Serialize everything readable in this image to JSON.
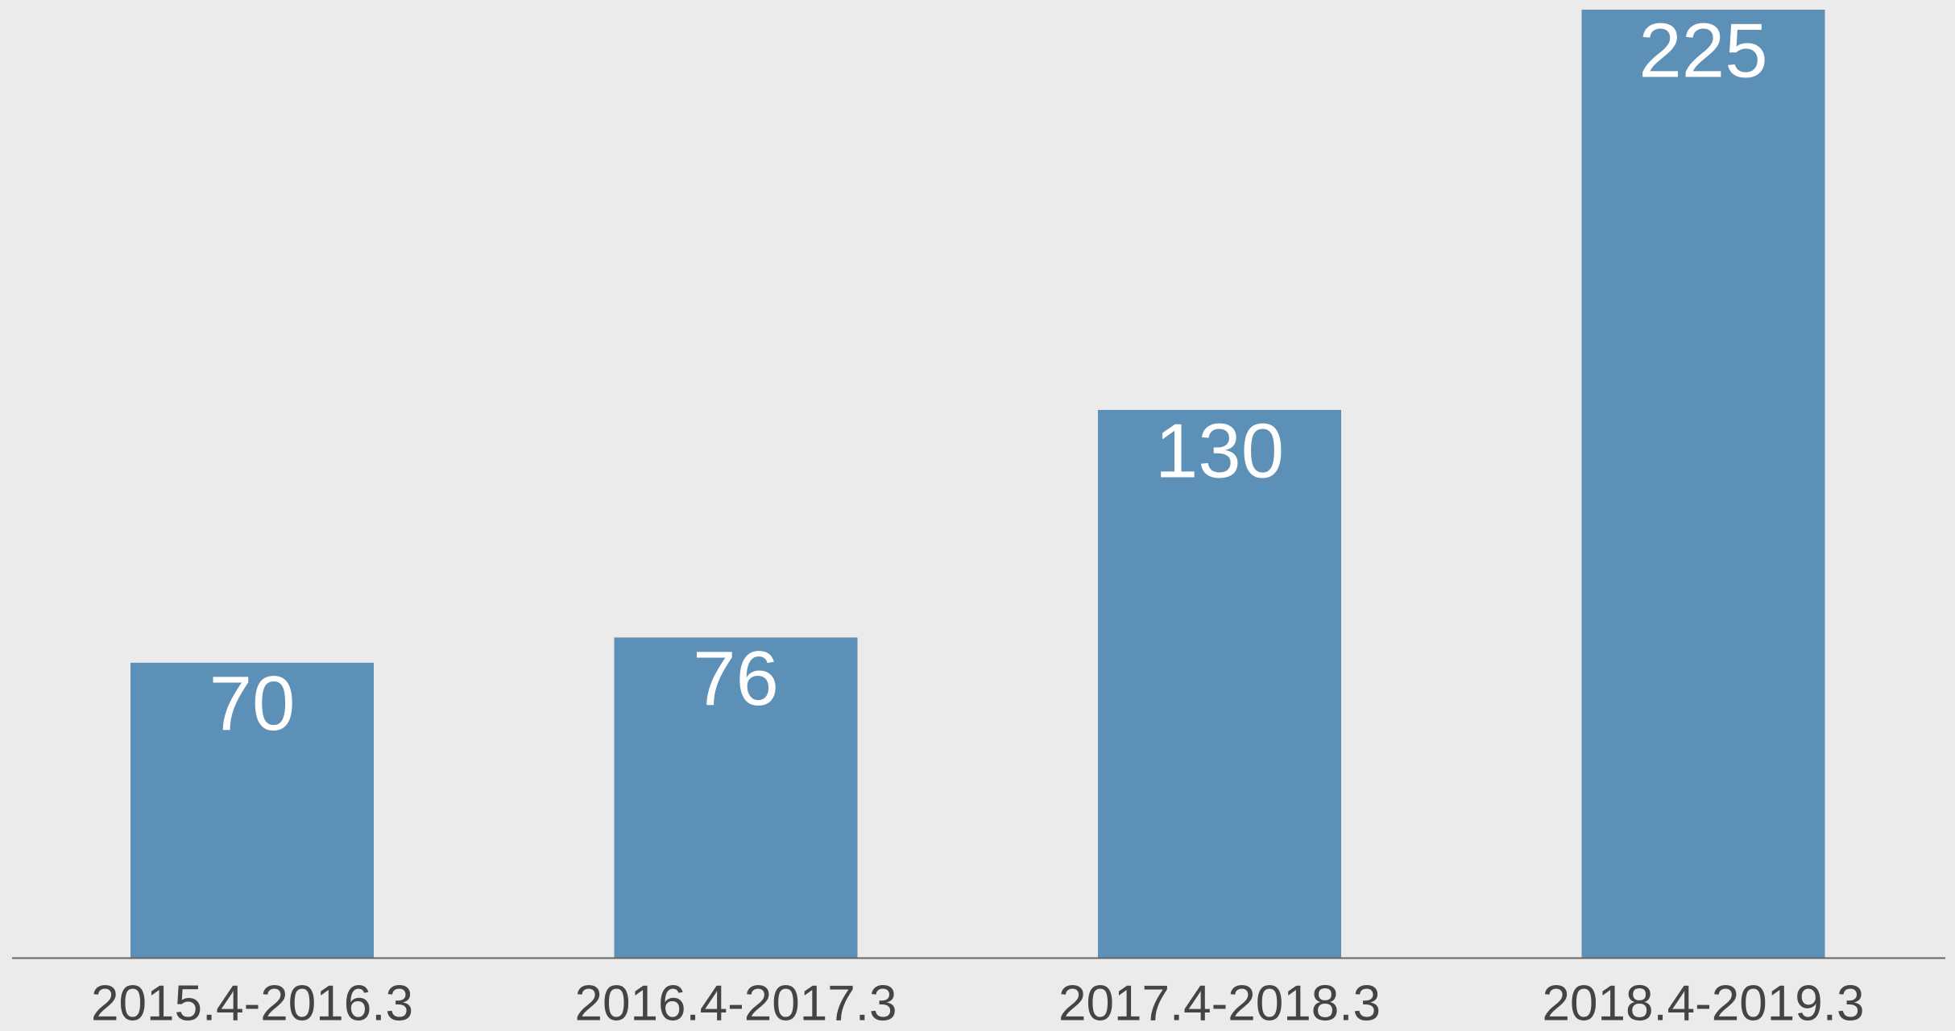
{
  "chart_data": {
    "type": "bar",
    "categories": [
      "2015.4-2016.3",
      "2016.4-2017.3",
      "2017.4-2018.3",
      "2018.4-2019.3"
    ],
    "values": [
      70,
      76,
      130,
      225
    ],
    "color": "#5c90b6"
  }
}
